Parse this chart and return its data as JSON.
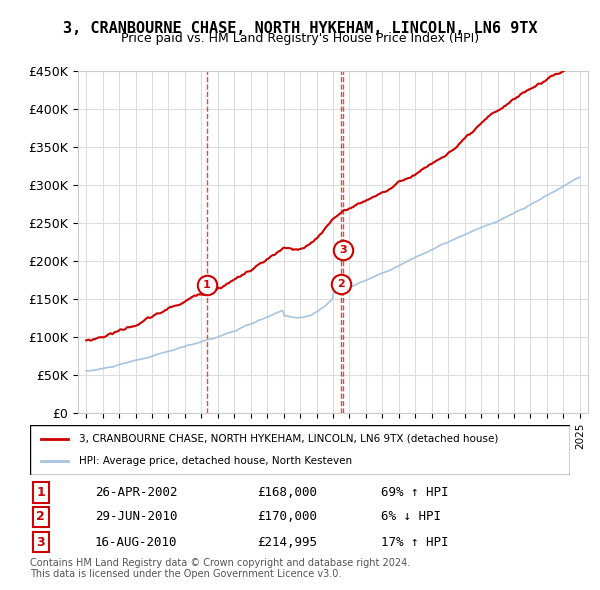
{
  "title": "3, CRANBOURNE CHASE, NORTH HYKEHAM, LINCOLN, LN6 9TX",
  "subtitle": "Price paid vs. HM Land Registry's House Price Index (HPI)",
  "ylabel": "",
  "ylim": [
    0,
    450000
  ],
  "yticks": [
    0,
    50000,
    100000,
    150000,
    200000,
    250000,
    300000,
    350000,
    400000,
    450000
  ],
  "ytick_labels": [
    "£0",
    "£50K",
    "£100K",
    "£150K",
    "£200K",
    "£250K",
    "£300K",
    "£350K",
    "£400K",
    "£450K"
  ],
  "x_start_year": 1995,
  "x_end_year": 2025,
  "hpi_color": "#a8c4e0",
  "price_color": "#cc0000",
  "marker_color": "#cc0000",
  "sale1": {
    "year": 2002.32,
    "price": 168000,
    "label": "1"
  },
  "sale2": {
    "year": 2010.49,
    "price": 170000,
    "label": "2"
  },
  "sale3": {
    "year": 2010.62,
    "price": 214995,
    "label": "3"
  },
  "legend_line1": "3, CRANBOURNE CHASE, NORTH HYKEHAM, LINCOLN, LN6 9TX (detached house)",
  "legend_line2": "HPI: Average price, detached house, North Kesteven",
  "table_rows": [
    {
      "num": "1",
      "date": "26-APR-2002",
      "price": "£168,000",
      "hpi": "69% ↑ HPI"
    },
    {
      "num": "2",
      "date": "29-JUN-2010",
      "price": "£170,000",
      "hpi": "6% ↓ HPI"
    },
    {
      "num": "3",
      "date": "16-AUG-2010",
      "price": "£214,995",
      "hpi": "17% ↑ HPI"
    }
  ],
  "footnote1": "Contains HM Land Registry data © Crown copyright and database right 2024.",
  "footnote2": "This data is licensed under the Open Government Licence v3.0.",
  "background_color": "#ffffff",
  "grid_color": "#dddddd"
}
